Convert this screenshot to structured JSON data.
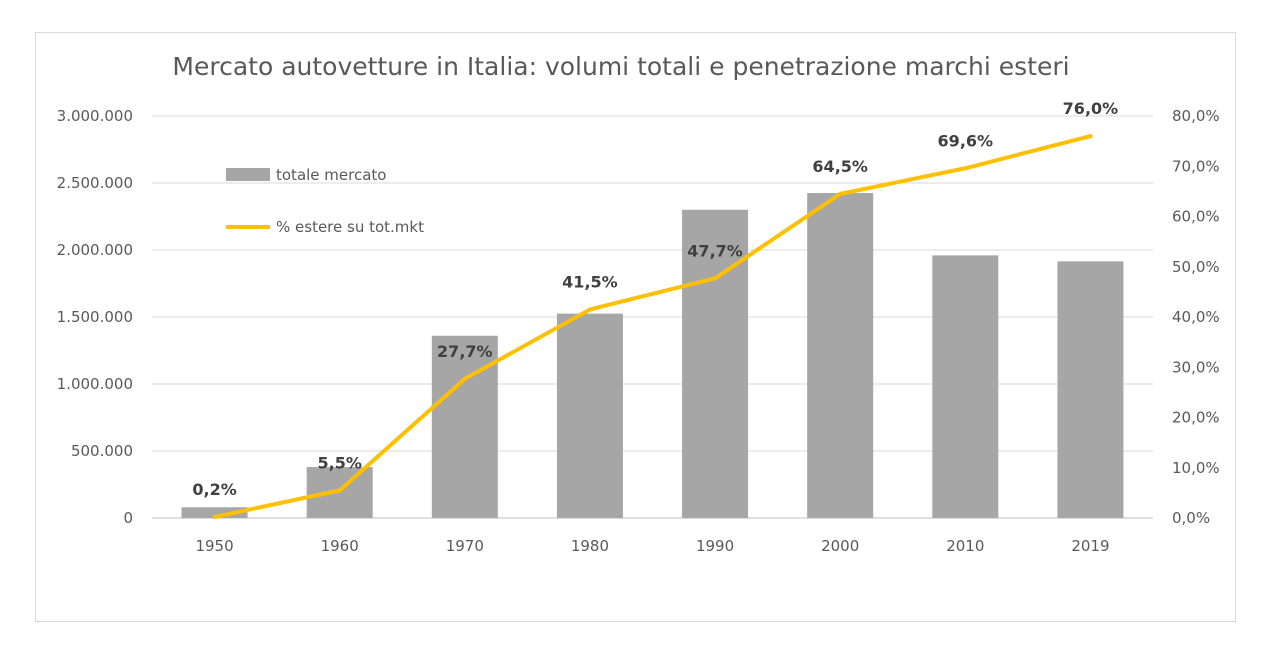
{
  "chart_data": {
    "type": "bar",
    "title": "Mercato autovetture in Italia: volumi totali e penetrazione  marchi esteri",
    "categories": [
      "1950",
      "1960",
      "1970",
      "1980",
      "1990",
      "2000",
      "2010",
      "2019"
    ],
    "series": [
      {
        "name": "totale mercato",
        "type": "bar",
        "axis": "left",
        "color": "#a6a6a6",
        "values": [
          80000,
          380000,
          1360000,
          1525000,
          2300000,
          2425000,
          1960000,
          1915000
        ]
      },
      {
        "name": "% estere su tot.mkt",
        "type": "line",
        "axis": "right",
        "color": "#ffc000",
        "values": [
          0.2,
          5.5,
          27.7,
          41.5,
          47.7,
          64.5,
          69.6,
          76.0
        ],
        "data_labels": [
          "0,2%",
          "5,5%",
          "27,7%",
          "41,5%",
          "47,7%",
          "64,5%",
          "69,6%",
          "76,0%"
        ]
      }
    ],
    "y_left": {
      "ylim": [
        0,
        3000000
      ],
      "tick_values": [
        0,
        500000,
        1000000,
        1500000,
        2000000,
        2500000,
        3000000
      ],
      "tick_labels": [
        "0",
        "500.000",
        "1.000.000",
        "1.500.000",
        "2.000.000",
        "2.500.000",
        "3.000.000"
      ]
    },
    "y_right": {
      "ylim": [
        0,
        80
      ],
      "tick_values": [
        0,
        10,
        20,
        30,
        40,
        50,
        60,
        70,
        80
      ],
      "tick_labels": [
        "0,0%",
        "10,0%",
        "20,0%",
        "30,0%",
        "40,0%",
        "50,0%",
        "60,0%",
        "70,0%",
        "80,0%"
      ]
    },
    "grid": true,
    "legend_position": "top-left inside plot"
  }
}
